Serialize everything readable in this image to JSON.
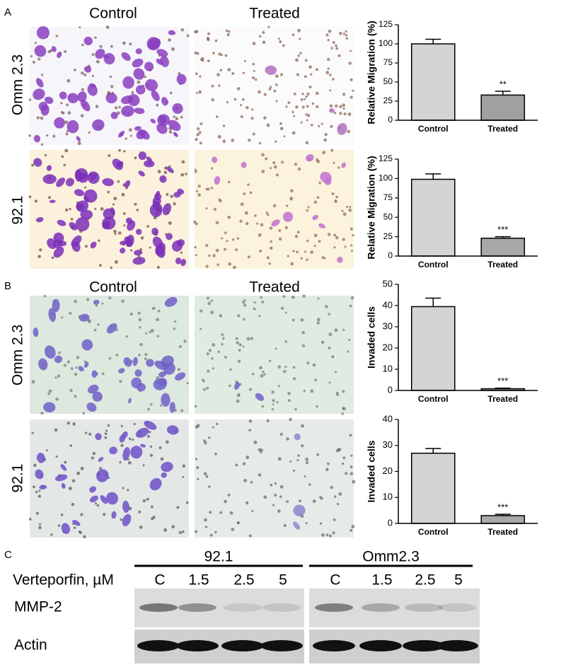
{
  "panels": {
    "a": {
      "letter": "A",
      "columns": [
        "Control",
        "Treated"
      ],
      "rows": [
        "Omm 2.3",
        "92.1"
      ]
    },
    "b": {
      "letter": "B",
      "columns": [
        "Control",
        "Treated"
      ],
      "rows": [
        "Omm 2.3",
        "92.1"
      ]
    },
    "c": {
      "letter": "C",
      "groups": [
        "92.1",
        "Omm2.3"
      ],
      "treatment": "Verteporfin, µM",
      "lanes": [
        "C",
        "1.5",
        "2.5",
        "5",
        "C",
        "1.5",
        "2.5",
        "5"
      ],
      "rows": [
        "MMP-2",
        "Actin"
      ]
    }
  },
  "chart_data": [
    {
      "type": "bar",
      "ylabel": "Relative Migration (%)",
      "categories": [
        "Control",
        "Treated"
      ],
      "values": [
        100,
        33
      ],
      "errors": [
        6,
        5
      ],
      "annotations": [
        null,
        "**"
      ],
      "colors": [
        "#d4d4d4",
        "#a0a0a0"
      ],
      "ylim": [
        0,
        125
      ],
      "yticks": [
        0,
        25,
        50,
        75,
        100,
        125
      ]
    },
    {
      "type": "bar",
      "ylabel": "Relative Migration (%)",
      "categories": [
        "Control",
        "Treated"
      ],
      "values": [
        99,
        23
      ],
      "errors": [
        7,
        2
      ],
      "annotations": [
        null,
        "***"
      ],
      "colors": [
        "#d4d4d4",
        "#a8a8a8"
      ],
      "ylim": [
        0,
        125
      ],
      "yticks": [
        0,
        25,
        50,
        75,
        100,
        125
      ]
    },
    {
      "type": "bar",
      "ylabel": "Invaded cells",
      "categories": [
        "Control",
        "Treated"
      ],
      "values": [
        39.5,
        0.8
      ],
      "errors": [
        4,
        0.3
      ],
      "annotations": [
        null,
        "***"
      ],
      "colors": [
        "#d4d4d4",
        "#a8a8a8"
      ],
      "ylim": [
        0,
        50
      ],
      "yticks": [
        0,
        10,
        20,
        30,
        40,
        50
      ]
    },
    {
      "type": "bar",
      "ylabel": "Invaded cells",
      "categories": [
        "Control",
        "Treated"
      ],
      "values": [
        27,
        3
      ],
      "errors": [
        1.8,
        0.5
      ],
      "annotations": [
        null,
        "***"
      ],
      "colors": [
        "#d4d4d4",
        "#a8a8a8"
      ],
      "ylim": [
        0,
        40
      ],
      "yticks": [
        0,
        10,
        20,
        30,
        40
      ]
    }
  ]
}
